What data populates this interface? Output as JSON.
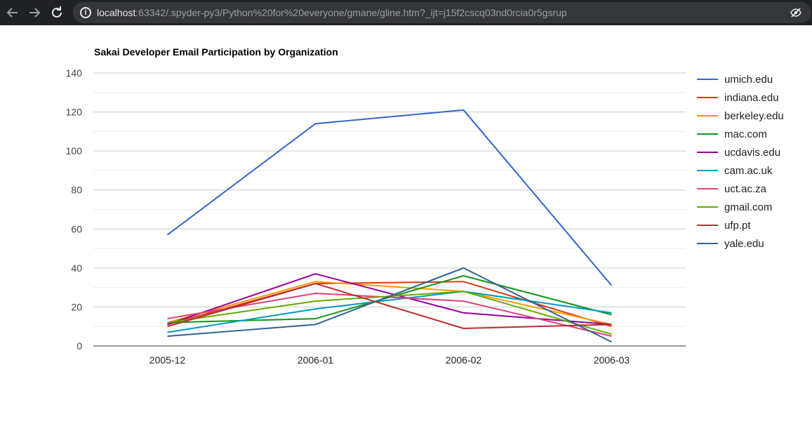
{
  "browser": {
    "back_icon": "arrow-left-icon",
    "forward_icon": "arrow-right-icon",
    "reload_icon": "reload-icon",
    "url_host": "localhost",
    "url_rest": ":63342/.spyder-py3/Python%20for%20everyone/gmane/gline.htm?_ijt=j15f2cscq03nd0rcia0r5gsrup",
    "privacy_icon": "eye-slash-icon"
  },
  "chart_data": {
    "type": "line",
    "title": "Sakai Developer Email Participation by Organization",
    "categories": [
      "2005-12",
      "2006-01",
      "2006-02",
      "2006-03"
    ],
    "ylim": [
      0,
      140
    ],
    "yticks": [
      0,
      20,
      40,
      60,
      80,
      100,
      120,
      140
    ],
    "grid": true,
    "legend": "right",
    "series": [
      {
        "name": "umich.edu",
        "color": "#3366cc",
        "values": [
          57,
          114,
          121,
          31
        ]
      },
      {
        "name": "indiana.edu",
        "color": "#dc3912",
        "values": [
          11,
          32,
          33,
          10
        ]
      },
      {
        "name": "berkeley.edu",
        "color": "#ff9900",
        "values": [
          12,
          33,
          28,
          11
        ]
      },
      {
        "name": "mac.com",
        "color": "#109618",
        "values": [
          12,
          14,
          36,
          16
        ]
      },
      {
        "name": "ucdavis.edu",
        "color": "#990099",
        "values": [
          11,
          37,
          17,
          11
        ]
      },
      {
        "name": "cam.ac.uk",
        "color": "#0099c6",
        "values": [
          7,
          19,
          28,
          17
        ]
      },
      {
        "name": "uct.ac.za",
        "color": "#dd4477",
        "values": [
          14,
          27,
          23,
          5
        ]
      },
      {
        "name": "gmail.com",
        "color": "#66aa00",
        "values": [
          12,
          23,
          28,
          6
        ]
      },
      {
        "name": "ufp.pt",
        "color": "#b82e2e",
        "values": [
          10,
          32,
          9,
          11
        ]
      },
      {
        "name": "yale.edu",
        "color": "#316395",
        "values": [
          5,
          11,
          40,
          2
        ]
      }
    ]
  }
}
